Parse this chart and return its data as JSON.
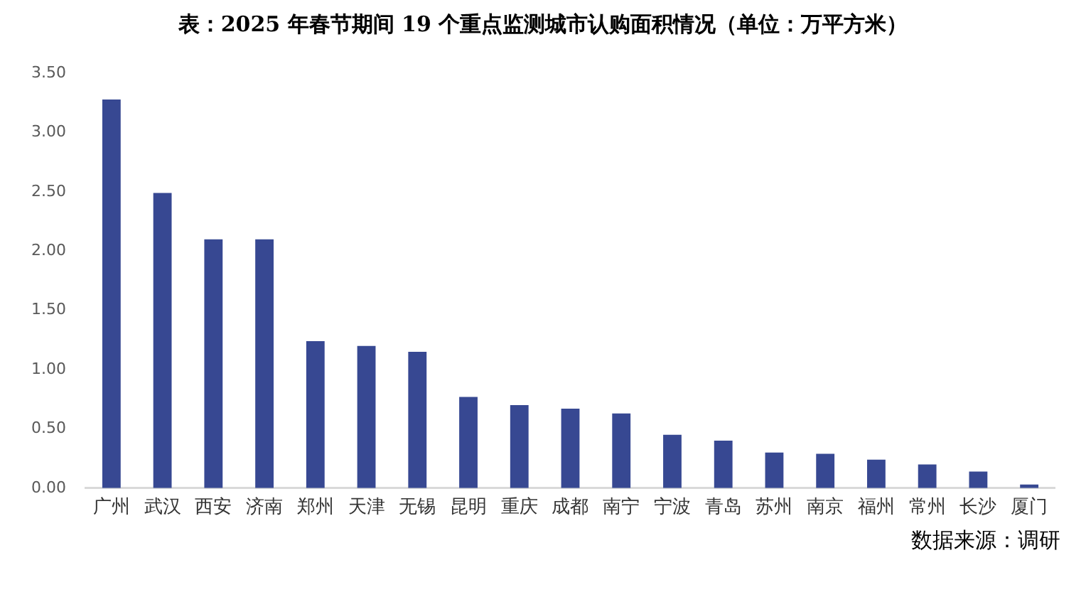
{
  "chart_data": {
    "type": "bar",
    "title": "表：2025 年春节期间 19 个重点监测城市认购面积情况（单位：万平方米）",
    "categories": [
      "广州",
      "武汉",
      "西安",
      "济南",
      "郑州",
      "天津",
      "无锡",
      "昆明",
      "重庆",
      "成都",
      "南宁",
      "宁波",
      "青岛",
      "苏州",
      "南京",
      "福州",
      "常州",
      "长沙",
      "厦门"
    ],
    "values": [
      3.28,
      2.49,
      2.1,
      2.1,
      1.24,
      1.2,
      1.15,
      0.77,
      0.7,
      0.67,
      0.63,
      0.45,
      0.4,
      0.3,
      0.29,
      0.24,
      0.2,
      0.14,
      0.03
    ],
    "color": "#374892",
    "ylim": [
      0,
      3.5
    ],
    "yticks": [
      {
        "value": 0,
        "label": "0.00"
      },
      {
        "value": 0.5,
        "label": "0.50"
      },
      {
        "value": 1,
        "label": "1.00"
      },
      {
        "value": 1.5,
        "label": "1.50"
      },
      {
        "value": 2,
        "label": "2.00"
      },
      {
        "value": 2.5,
        "label": "2.50"
      },
      {
        "value": 3,
        "label": "3.00"
      },
      {
        "value": 3.5,
        "label": "3.50"
      }
    ],
    "grid": false,
    "legend": false,
    "annotations": [
      "数据来源：调研"
    ]
  }
}
